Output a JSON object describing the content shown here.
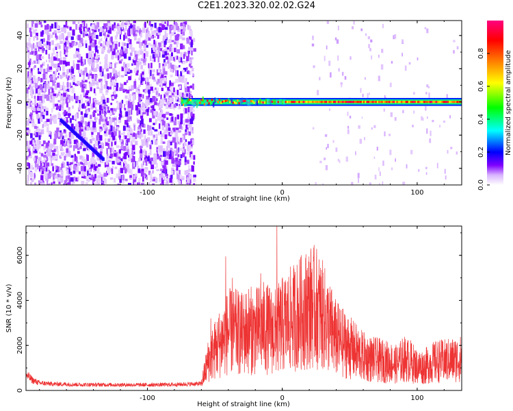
{
  "page_title": "C2E1.2023.320.02.02.G24",
  "chart_data": [
    {
      "type": "heatmap",
      "title": "C2E1.2023.320.02.02.G24",
      "xlabel": "Height of straight line (km)",
      "ylabel": "Frequency (Hz)",
      "xlim": [
        -190,
        133
      ],
      "ylim": [
        -50,
        49
      ],
      "xticks": [
        -100,
        0,
        100
      ],
      "yticks": [
        -40,
        -20,
        0,
        20,
        40
      ],
      "colorbar": {
        "label": "Normalized spectral amplitude",
        "ticks": [
          0.0,
          0.2,
          0.4,
          0.6,
          0.8
        ],
        "range": [
          0,
          1
        ],
        "colormap": [
          "#ffffff",
          "#d9b3ff",
          "#8000ff",
          "#0000ff",
          "#00ffff",
          "#00ff00",
          "#ffff00",
          "#ff8000",
          "#ff0000",
          "#ff0080"
        ]
      },
      "regions": [
        {
          "name": "broadband noise",
          "x_range": [
            -190,
            -66
          ],
          "y_range": [
            -50,
            49
          ],
          "amplitude_range": [
            0.0,
            0.15
          ]
        },
        {
          "name": "signal line",
          "x_range": [
            -75,
            133
          ],
          "y_center": 0,
          "half_width_hz": 1.5,
          "amplitude_range": [
            0.6,
            1.0
          ]
        }
      ]
    },
    {
      "type": "line",
      "xlabel": "Height of straight line (km)",
      "ylabel": "SNR (10 * v/v)",
      "xlim": [
        -190,
        133
      ],
      "ylim": [
        0,
        7300
      ],
      "xticks": [
        -100,
        0,
        100
      ],
      "yticks": [
        0,
        2000,
        4000,
        6000
      ],
      "grid": false,
      "series": [
        {
          "color": "#ee3333",
          "envelope": [
            {
              "x": -190,
              "y": 700
            },
            {
              "x": -185,
              "y": 450
            },
            {
              "x": -180,
              "y": 330
            },
            {
              "x": -170,
              "y": 290
            },
            {
              "x": -150,
              "y": 260
            },
            {
              "x": -120,
              "y": 250
            },
            {
              "x": -100,
              "y": 250
            },
            {
              "x": -80,
              "y": 260
            },
            {
              "x": -60,
              "y": 300
            },
            {
              "x": -55,
              "y": 1300
            },
            {
              "x": -50,
              "y": 1800
            },
            {
              "x": -45,
              "y": 2200
            },
            {
              "x": -40,
              "y": 2600
            },
            {
              "x": -35,
              "y": 2600
            },
            {
              "x": -30,
              "y": 2500
            },
            {
              "x": -25,
              "y": 2700
            },
            {
              "x": -20,
              "y": 2600
            },
            {
              "x": -15,
              "y": 2800
            },
            {
              "x": -10,
              "y": 2700
            },
            {
              "x": -5,
              "y": 2600
            },
            {
              "x": 0,
              "y": 2900
            },
            {
              "x": 5,
              "y": 3100
            },
            {
              "x": 10,
              "y": 3300
            },
            {
              "x": 15,
              "y": 3500
            },
            {
              "x": 20,
              "y": 3700
            },
            {
              "x": 25,
              "y": 3700
            },
            {
              "x": 30,
              "y": 3300
            },
            {
              "x": 35,
              "y": 2800
            },
            {
              "x": 40,
              "y": 2300
            },
            {
              "x": 45,
              "y": 2100
            },
            {
              "x": 50,
              "y": 1900
            },
            {
              "x": 55,
              "y": 1700
            },
            {
              "x": 60,
              "y": 1500
            },
            {
              "x": 65,
              "y": 1400
            },
            {
              "x": 70,
              "y": 1350
            },
            {
              "x": 75,
              "y": 1300
            },
            {
              "x": 80,
              "y": 1250
            },
            {
              "x": 85,
              "y": 1150
            },
            {
              "x": 90,
              "y": 1400
            },
            {
              "x": 95,
              "y": 1300
            },
            {
              "x": 100,
              "y": 1050
            },
            {
              "x": 105,
              "y": 1050
            },
            {
              "x": 110,
              "y": 1200
            },
            {
              "x": 115,
              "y": 1300
            },
            {
              "x": 120,
              "y": 1300
            },
            {
              "x": 125,
              "y": 1350
            },
            {
              "x": 133,
              "y": 1400
            }
          ],
          "spikes": [
            {
              "x": -42,
              "y": 5950
            },
            {
              "x": -37,
              "y": 5000
            },
            {
              "x": -4,
              "y": 7300
            },
            {
              "x": -16,
              "y": 5200
            },
            {
              "x": 22,
              "y": 5400
            },
            {
              "x": 28,
              "y": 5100
            },
            {
              "x": -53,
              "y": 3200
            }
          ]
        }
      ]
    }
  ]
}
